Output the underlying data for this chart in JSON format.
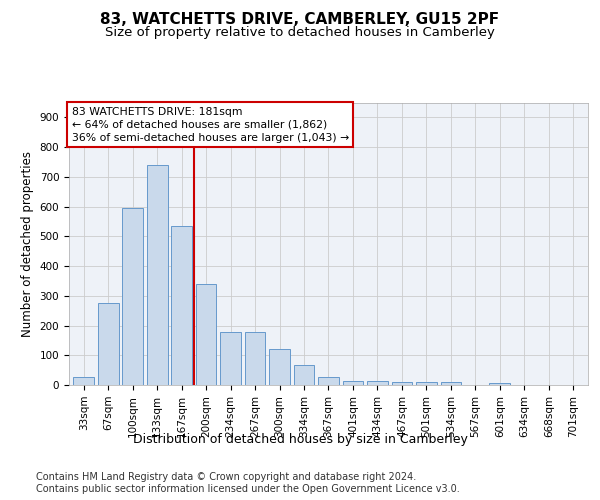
{
  "title": "83, WATCHETTS DRIVE, CAMBERLEY, GU15 2PF",
  "subtitle": "Size of property relative to detached houses in Camberley",
  "xlabel": "Distribution of detached houses by size in Camberley",
  "ylabel": "Number of detached properties",
  "categories": [
    "33sqm",
    "67sqm",
    "100sqm",
    "133sqm",
    "167sqm",
    "200sqm",
    "234sqm",
    "267sqm",
    "300sqm",
    "334sqm",
    "367sqm",
    "401sqm",
    "434sqm",
    "467sqm",
    "501sqm",
    "534sqm",
    "567sqm",
    "601sqm",
    "634sqm",
    "668sqm",
    "701sqm"
  ],
  "bar_heights": [
    27,
    275,
    595,
    740,
    535,
    340,
    178,
    178,
    120,
    68,
    27,
    15,
    15,
    9,
    9,
    9,
    0,
    8,
    0,
    0,
    0
  ],
  "bar_color": "#c9d9eb",
  "bar_edge_color": "#6699cc",
  "grid_color": "#cccccc",
  "vline_color": "#cc0000",
  "annotation_line1": "83 WATCHETTS DRIVE: 181sqm",
  "annotation_line2": "← 64% of detached houses are smaller (1,862)",
  "annotation_line3": "36% of semi-detached houses are larger (1,043) →",
  "annotation_box_color": "#cc0000",
  "ylim": [
    0,
    950
  ],
  "yticks": [
    0,
    100,
    200,
    300,
    400,
    500,
    600,
    700,
    800,
    900
  ],
  "background_color": "#eef2f8",
  "footer_text": "Contains HM Land Registry data © Crown copyright and database right 2024.\nContains public sector information licensed under the Open Government Licence v3.0.",
  "title_fontsize": 11,
  "subtitle_fontsize": 9.5,
  "xlabel_fontsize": 9,
  "ylabel_fontsize": 8.5,
  "tick_fontsize": 7.5,
  "footer_fontsize": 7
}
